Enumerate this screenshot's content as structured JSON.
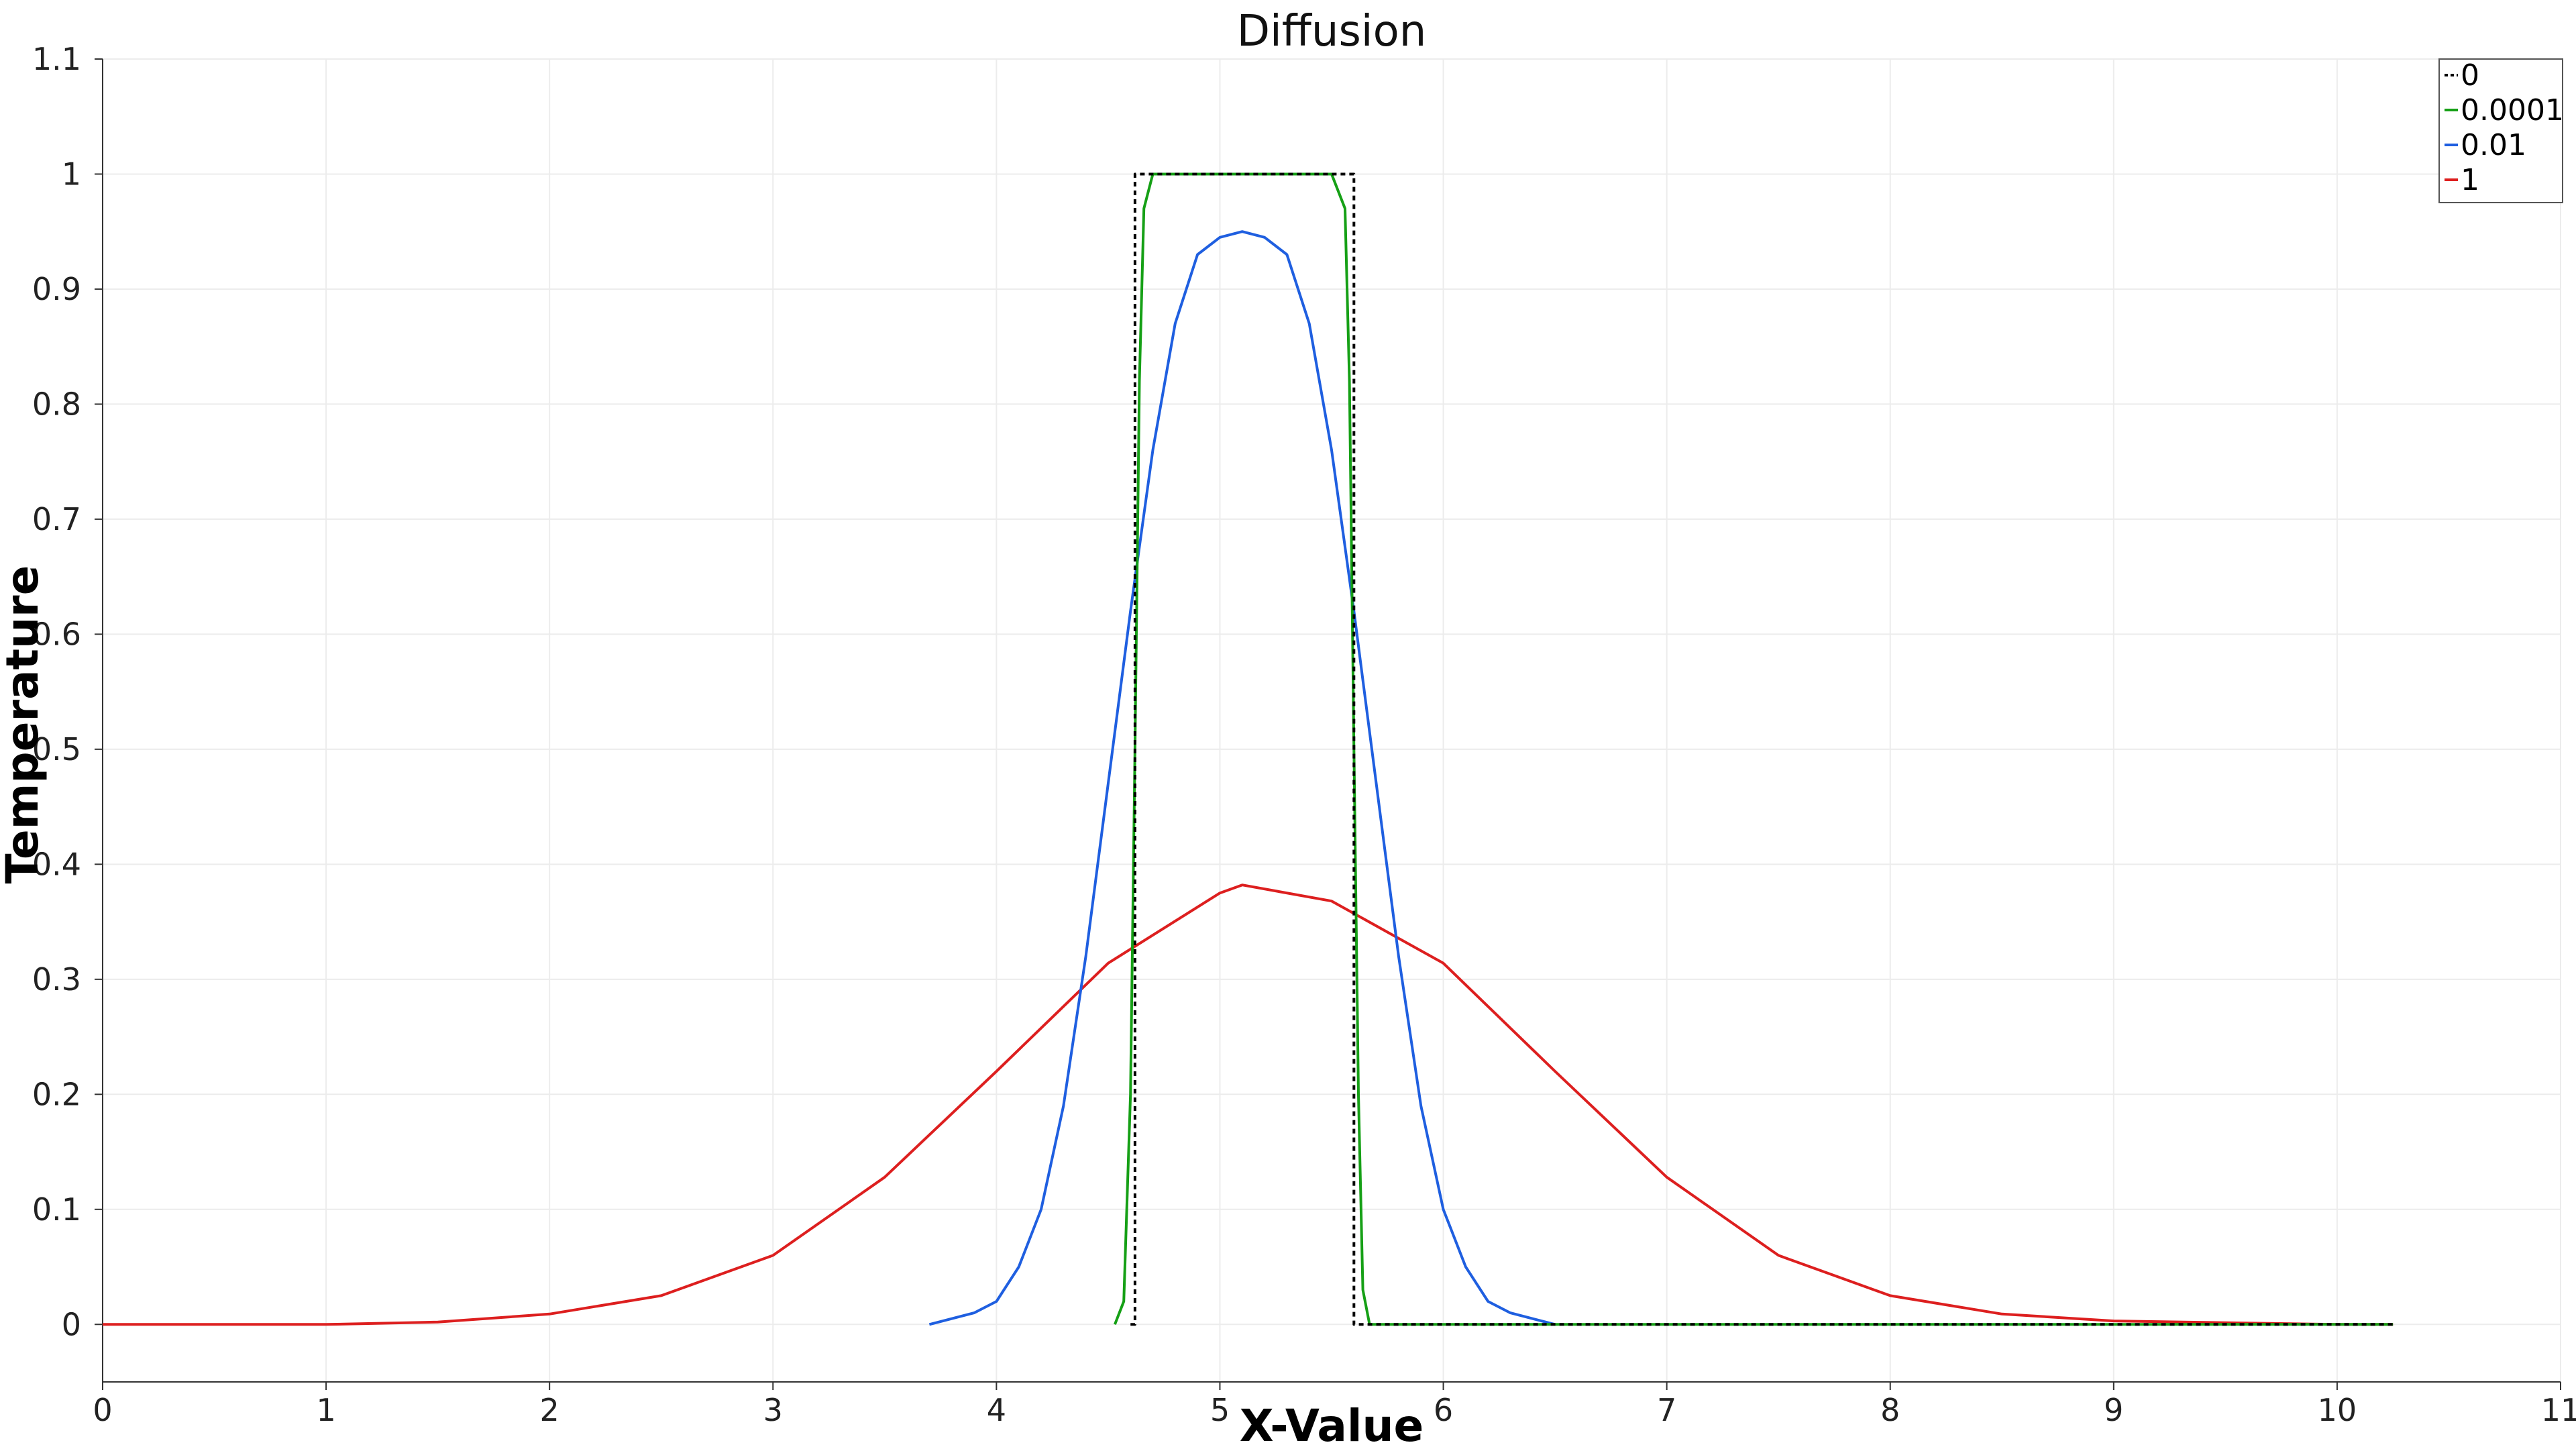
{
  "chart_data": {
    "type": "line",
    "title": "Diffusion",
    "xlabel": "X-Value",
    "ylabel": "Temperature",
    "xlim": [
      0,
      11
    ],
    "ylim": [
      -0.05,
      1.1
    ],
    "xticks": [
      "0",
      "1",
      "2",
      "3",
      "4",
      "5",
      "6",
      "7",
      "8",
      "9",
      "10",
      "11"
    ],
    "yticks": [
      "0",
      "0.1",
      "0.2",
      "0.3",
      "0.4",
      "0.5",
      "0.6",
      "0.7",
      "0.8",
      "0.9",
      "1",
      "1.1"
    ],
    "grid": true,
    "legend_position": "top-right",
    "series": [
      {
        "name": "0",
        "color": "#000000",
        "dashed": true,
        "x": [
          4.6,
          4.6,
          4.62,
          4.62,
          5.58,
          5.58,
          5.6,
          5.6,
          10.25
        ],
        "y": [
          0,
          0.0,
          0.0,
          1.0,
          1.0,
          1.0,
          1.0,
          0.0,
          0.0
        ]
      },
      {
        "name": "0.0001",
        "color": "#16a016",
        "dashed": false,
        "x": [
          4.53,
          4.57,
          4.6,
          4.62,
          4.64,
          4.66,
          4.7,
          4.8,
          5.5,
          5.56,
          5.58,
          5.6,
          5.62,
          5.64,
          5.67,
          5.7,
          10.25
        ],
        "y": [
          0.0,
          0.02,
          0.2,
          0.5,
          0.82,
          0.97,
          1.0,
          1.0,
          1.0,
          0.97,
          0.82,
          0.5,
          0.2,
          0.03,
          0.0,
          0.0,
          0.0
        ]
      },
      {
        "name": "0.01",
        "color": "#1f5fe0",
        "dashed": false,
        "x": [
          3.7,
          3.9,
          4.0,
          4.1,
          4.2,
          4.3,
          4.4,
          4.5,
          4.6,
          4.7,
          4.8,
          4.9,
          5.0,
          5.1,
          5.2,
          5.3,
          5.4,
          5.5,
          5.6,
          5.7,
          5.8,
          5.9,
          6.0,
          6.1,
          6.2,
          6.3,
          6.5
        ],
        "y": [
          0.0,
          0.01,
          0.02,
          0.05,
          0.1,
          0.19,
          0.32,
          0.47,
          0.62,
          0.76,
          0.87,
          0.93,
          0.945,
          0.95,
          0.945,
          0.93,
          0.87,
          0.76,
          0.62,
          0.47,
          0.32,
          0.19,
          0.1,
          0.05,
          0.02,
          0.01,
          0.0
        ]
      },
      {
        "name": "1",
        "color": "#dd1f1f",
        "dashed": false,
        "x": [
          0,
          1,
          1.5,
          2,
          2.5,
          3,
          3.5,
          4,
          4.5,
          5,
          5.1,
          5.5,
          6,
          6.5,
          7,
          7.5,
          8,
          8.5,
          9,
          10,
          10.25
        ],
        "y": [
          0.0,
          0.0,
          0.002,
          0.009,
          0.025,
          0.06,
          0.128,
          0.22,
          0.314,
          0.375,
          0.382,
          0.368,
          0.314,
          0.22,
          0.128,
          0.06,
          0.025,
          0.009,
          0.003,
          0.0,
          0.0
        ]
      }
    ]
  }
}
